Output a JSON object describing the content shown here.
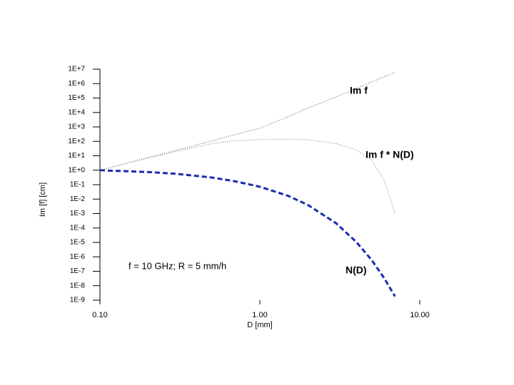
{
  "chart_data": {
    "type": "line",
    "log_x": true,
    "log_y": true,
    "x_label": "D [mm]",
    "y_label": "Im [f] [cm]",
    "annotation": "f = 10 GHz;    R = 5 mm/h",
    "x": [
      0.1,
      0.2,
      0.3,
      0.5,
      0.7,
      1,
      1.5,
      2,
      3,
      4,
      5,
      6,
      7
    ],
    "series": [
      {
        "name": "Im f",
        "color": "#555555",
        "style": "dotted",
        "values": [
          1,
          7.5,
          24,
          106,
          300,
          800,
          5000,
          20000,
          120000,
          450000,
          1300000,
          3000000,
          6000000
        ]
      },
      {
        "name": "Im f * N(D)",
        "color": "#777777",
        "style": "dotted",
        "values": [
          1,
          7,
          20,
          70,
          110,
          130,
          140,
          130,
          70,
          25,
          5,
          0.2,
          0.001
        ]
      },
      {
        "name": "N(D)",
        "color": "#1a2bb0",
        "style": "dashed",
        "values": [
          1,
          0.75,
          0.56,
          0.31,
          0.17,
          0.072,
          0.017,
          0.0039,
          0.00021,
          1.1e-05,
          6e-07,
          3.3e-08,
          1.8e-09
        ]
      }
    ],
    "xlim": [
      0.1,
      10
    ],
    "xticks": [
      {
        "value": 0.1,
        "label": "0.10"
      },
      {
        "value": 1,
        "label": "1.00"
      },
      {
        "value": 10,
        "label": "10.00"
      }
    ],
    "ylim": [
      1e-09,
      10000000
    ],
    "yticks": [
      {
        "value": 1e-09,
        "label": "1E-9"
      },
      {
        "value": 1e-08,
        "label": "1E-8"
      },
      {
        "value": 1e-07,
        "label": "1E-7"
      },
      {
        "value": 1e-06,
        "label": "1E-6"
      },
      {
        "value": 1e-05,
        "label": "1E-5"
      },
      {
        "value": 0.0001,
        "label": "1E-4"
      },
      {
        "value": 0.001,
        "label": "1E-3"
      },
      {
        "value": 0.01,
        "label": "1E-2"
      },
      {
        "value": 0.1,
        "label": "1E-1"
      },
      {
        "value": 1,
        "label": "1E+0"
      },
      {
        "value": 10,
        "label": "1E+1"
      },
      {
        "value": 100,
        "label": "1E+2"
      },
      {
        "value": 1000,
        "label": "1E+3"
      },
      {
        "value": 10000,
        "label": "1E+4"
      },
      {
        "value": 100000,
        "label": "1E+5"
      },
      {
        "value": 1000000,
        "label": "1E+6"
      },
      {
        "value": 10000000,
        "label": "1E+7"
      }
    ]
  }
}
